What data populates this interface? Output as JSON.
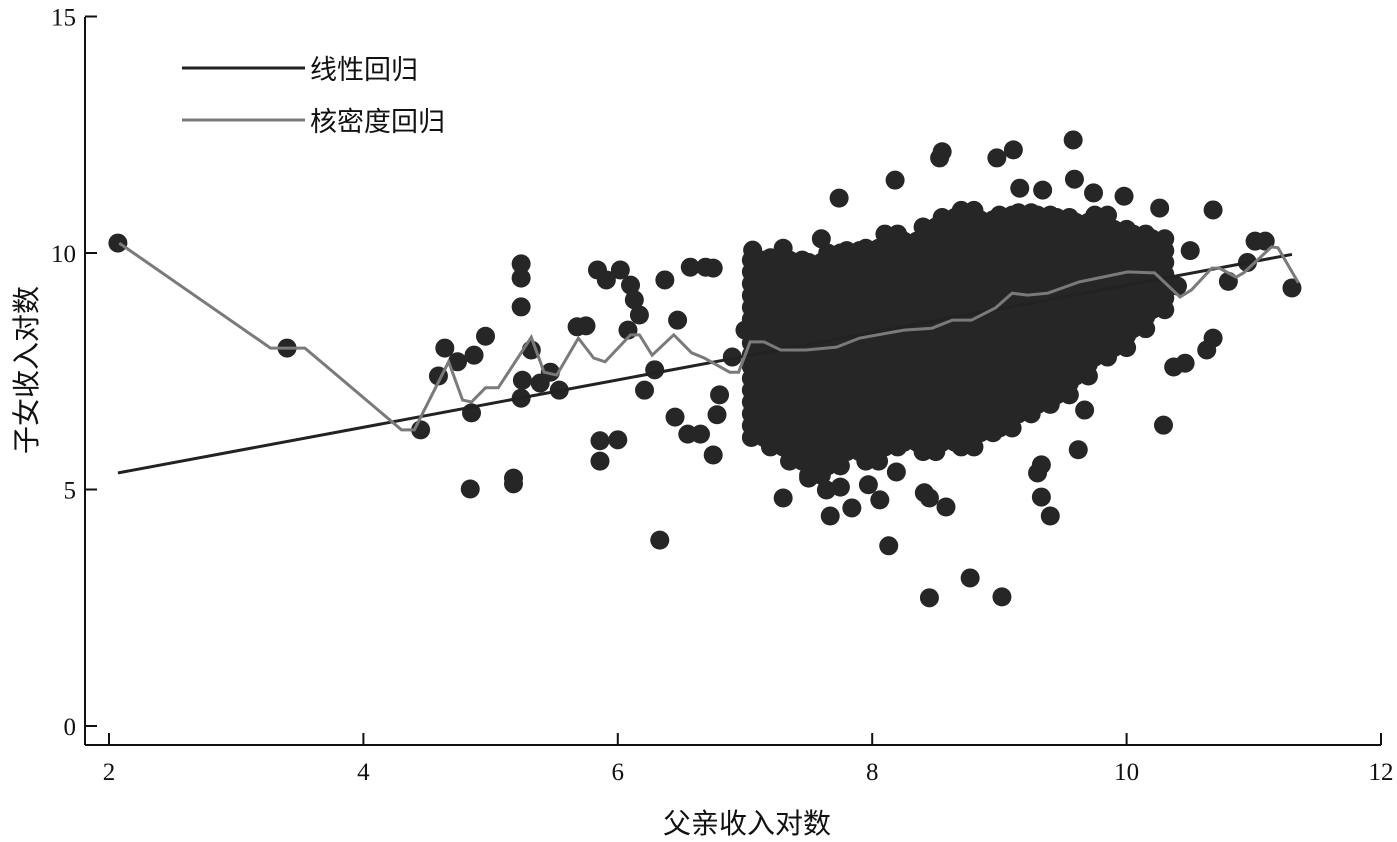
{
  "chart_data": {
    "type": "scatter",
    "title": "",
    "xlabel": "父亲收入对数",
    "ylabel": "子女收入对数",
    "xlim": [
      2,
      12
    ],
    "ylim": [
      0,
      15
    ],
    "xticks": [
      "2",
      "4",
      "6",
      "8",
      "10",
      "12"
    ],
    "yticks": [
      "0",
      "5",
      "10",
      "15"
    ],
    "grid": false,
    "legend_position": "top-left",
    "colors": {
      "points": "#262626",
      "linear": "#222222",
      "kernel": "#7a7a7a",
      "axis": "#111111"
    },
    "legend": [
      {
        "label": "线性回归",
        "series": "linear"
      },
      {
        "label": "核密度回归",
        "series": "kernel"
      }
    ],
    "points": [
      [
        2.07,
        10.21
      ],
      [
        3.4,
        7.99
      ],
      [
        4.45,
        6.26
      ],
      [
        4.64,
        7.99
      ],
      [
        4.59,
        7.4
      ],
      [
        4.74,
        7.7
      ],
      [
        4.87,
        7.84
      ],
      [
        4.96,
        8.24
      ],
      [
        4.85,
        6.62
      ],
      [
        4.84,
        5.01
      ],
      [
        5.18,
        5.12
      ],
      [
        5.18,
        5.24
      ],
      [
        5.24,
        9.77
      ],
      [
        5.24,
        9.47
      ],
      [
        5.24,
        8.86
      ],
      [
        5.24,
        6.93
      ],
      [
        5.25,
        7.31
      ],
      [
        5.32,
        7.95
      ],
      [
        5.39,
        7.25
      ],
      [
        5.47,
        7.48
      ],
      [
        5.54,
        7.1
      ],
      [
        5.68,
        8.44
      ],
      [
        5.75,
        8.46
      ],
      [
        5.84,
        9.64
      ],
      [
        5.91,
        9.43
      ],
      [
        5.86,
        6.03
      ],
      [
        5.86,
        5.6
      ],
      [
        6.0,
        6.05
      ],
      [
        6.02,
        9.64
      ],
      [
        6.1,
        9.32
      ],
      [
        6.13,
        9.01
      ],
      [
        6.17,
        8.69
      ],
      [
        6.08,
        8.37
      ],
      [
        6.33,
        3.93
      ],
      [
        6.21,
        7.1
      ],
      [
        6.29,
        7.53
      ],
      [
        6.37,
        9.43
      ],
      [
        6.47,
        8.58
      ],
      [
        6.57,
        9.7
      ],
      [
        6.69,
        9.7
      ],
      [
        6.75,
        9.68
      ],
      [
        6.45,
        6.53
      ],
      [
        6.55,
        6.17
      ],
      [
        6.65,
        6.17
      ],
      [
        6.75,
        5.73
      ],
      [
        6.78,
        6.58
      ],
      [
        6.8,
        7.0
      ],
      [
        7.0,
        8.37
      ],
      [
        7.06,
        10.06
      ],
      [
        6.9,
        7.8
      ],
      [
        7.3,
        4.82
      ],
      [
        7.5,
        5.24
      ],
      [
        7.64,
        4.99
      ],
      [
        7.67,
        4.44
      ],
      [
        7.75,
        5.05
      ],
      [
        7.84,
        4.61
      ],
      [
        7.97,
        5.1
      ],
      [
        8.06,
        4.78
      ],
      [
        8.13,
        3.81
      ],
      [
        8.19,
        5.37
      ],
      [
        8.41,
        4.93
      ],
      [
        8.45,
        4.82
      ],
      [
        8.45,
        2.71
      ],
      [
        8.58,
        4.63
      ],
      [
        8.77,
        3.13
      ],
      [
        9.02,
        2.73
      ],
      [
        9.3,
        5.35
      ],
      [
        9.33,
        5.52
      ],
      [
        9.33,
        4.84
      ],
      [
        9.4,
        4.44
      ],
      [
        9.62,
        5.84
      ],
      [
        9.67,
        6.68
      ],
      [
        10.29,
        6.36
      ],
      [
        9.58,
        12.39
      ],
      [
        8.53,
        12.01
      ],
      [
        8.55,
        12.14
      ],
      [
        8.98,
        12.01
      ],
      [
        9.11,
        12.18
      ],
      [
        8.18,
        11.54
      ],
      [
        7.74,
        11.16
      ],
      [
        9.59,
        11.56
      ],
      [
        9.16,
        11.37
      ],
      [
        9.34,
        11.33
      ],
      [
        9.74,
        11.27
      ],
      [
        9.98,
        11.2
      ],
      [
        10.26,
        10.95
      ],
      [
        10.68,
        10.91
      ],
      [
        11.01,
        10.25
      ],
      [
        11.09,
        10.25
      ],
      [
        11.3,
        9.26
      ],
      [
        10.68,
        8.2
      ],
      [
        10.63,
        7.95
      ],
      [
        10.37,
        7.59
      ],
      [
        10.46,
        7.67
      ],
      [
        10.5,
        10.05
      ],
      [
        10.8,
        9.4
      ],
      [
        10.95,
        9.8
      ],
      [
        10.4,
        9.3
      ],
      [
        7.3,
        10.1
      ],
      [
        7.6,
        10.3
      ]
    ],
    "dense_region": [
      {
        "x": 7.1,
        "y_min": 6.1,
        "y_max": 9.9
      },
      {
        "x": 7.25,
        "y_min": 5.9,
        "y_max": 9.9
      },
      {
        "x": 7.4,
        "y_min": 5.6,
        "y_max": 10.0
      },
      {
        "x": 7.55,
        "y_min": 5.3,
        "y_max": 10.0
      },
      {
        "x": 7.7,
        "y_min": 5.5,
        "y_max": 10.1
      },
      {
        "x": 7.85,
        "y_min": 5.8,
        "y_max": 10.2
      },
      {
        "x": 8.0,
        "y_min": 5.6,
        "y_max": 10.3
      },
      {
        "x": 8.15,
        "y_min": 5.9,
        "y_max": 10.5
      },
      {
        "x": 8.3,
        "y_min": 6.0,
        "y_max": 10.4
      },
      {
        "x": 8.45,
        "y_min": 5.8,
        "y_max": 10.7
      },
      {
        "x": 8.6,
        "y_min": 6.0,
        "y_max": 10.9
      },
      {
        "x": 8.75,
        "y_min": 5.9,
        "y_max": 10.9
      },
      {
        "x": 8.9,
        "y_min": 6.2,
        "y_max": 10.8
      },
      {
        "x": 9.05,
        "y_min": 6.3,
        "y_max": 11.0
      },
      {
        "x": 9.2,
        "y_min": 6.6,
        "y_max": 11.0
      },
      {
        "x": 9.35,
        "y_min": 6.8,
        "y_max": 11.0
      },
      {
        "x": 9.5,
        "y_min": 7.0,
        "y_max": 10.9
      },
      {
        "x": 9.65,
        "y_min": 7.4,
        "y_max": 10.8
      },
      {
        "x": 9.8,
        "y_min": 7.8,
        "y_max": 10.8
      },
      {
        "x": 9.95,
        "y_min": 8.0,
        "y_max": 10.6
      },
      {
        "x": 10.1,
        "y_min": 8.4,
        "y_max": 10.5
      },
      {
        "x": 10.25,
        "y_min": 8.8,
        "y_max": 10.3
      }
    ],
    "series": [
      {
        "name": "线性回归",
        "type": "line",
        "points": [
          [
            2.07,
            5.35
          ],
          [
            11.3,
            9.97
          ]
        ]
      },
      {
        "name": "核密度回归",
        "type": "line",
        "points": [
          [
            2.08,
            10.21
          ],
          [
            3.27,
            7.99
          ],
          [
            3.54,
            7.99
          ],
          [
            4.3,
            6.26
          ],
          [
            4.4,
            6.26
          ],
          [
            4.67,
            7.7
          ],
          [
            4.78,
            6.89
          ],
          [
            4.85,
            6.85
          ],
          [
            4.96,
            7.15
          ],
          [
            5.06,
            7.15
          ],
          [
            5.32,
            8.22
          ],
          [
            5.42,
            7.48
          ],
          [
            5.52,
            7.42
          ],
          [
            5.69,
            8.2
          ],
          [
            5.81,
            7.78
          ],
          [
            5.9,
            7.7
          ],
          [
            6.1,
            8.27
          ],
          [
            6.17,
            8.27
          ],
          [
            6.27,
            7.84
          ],
          [
            6.44,
            8.27
          ],
          [
            6.58,
            7.89
          ],
          [
            6.68,
            7.78
          ],
          [
            6.88,
            7.48
          ],
          [
            6.95,
            7.48
          ],
          [
            7.04,
            8.12
          ],
          [
            7.15,
            8.12
          ],
          [
            7.28,
            7.95
          ],
          [
            7.48,
            7.95
          ],
          [
            7.72,
            8.01
          ],
          [
            7.9,
            8.2
          ],
          [
            8.25,
            8.37
          ],
          [
            8.47,
            8.41
          ],
          [
            8.63,
            8.58
          ],
          [
            8.78,
            8.58
          ],
          [
            8.97,
            8.84
          ],
          [
            9.1,
            9.15
          ],
          [
            9.22,
            9.11
          ],
          [
            9.38,
            9.15
          ],
          [
            9.63,
            9.39
          ],
          [
            10.01,
            9.6
          ],
          [
            10.22,
            9.58
          ],
          [
            10.42,
            9.07
          ],
          [
            10.51,
            9.22
          ],
          [
            10.67,
            9.68
          ],
          [
            10.73,
            9.68
          ],
          [
            10.86,
            9.49
          ],
          [
            10.92,
            9.58
          ],
          [
            11.14,
            10.13
          ],
          [
            11.19,
            10.11
          ],
          [
            11.35,
            9.37
          ]
        ]
      }
    ]
  }
}
